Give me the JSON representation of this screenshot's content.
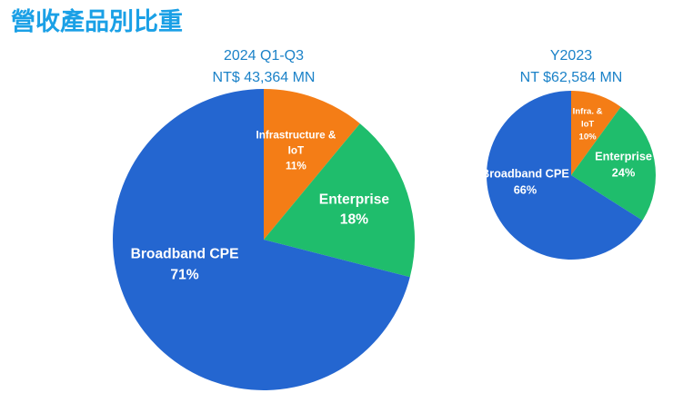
{
  "title": "營收產品別比重",
  "chart_data": [
    {
      "type": "pie",
      "title": "2024 Q1-Q3",
      "subtitle": "NT$ 43,364 MN",
      "categories": [
        "Infrastructure & IoT",
        "Enterprise",
        "Broadband CPE"
      ],
      "values": [
        11,
        18,
        71
      ],
      "value_labels": [
        "11%",
        "18%",
        "71%"
      ],
      "colors": [
        "#f47d16",
        "#1fbd6c",
        "#2466d0"
      ]
    },
    {
      "type": "pie",
      "title": "Y2023",
      "subtitle": "NT $62,584 MN",
      "categories": [
        "Infra. & IoT",
        "Enterprise",
        "Broadband CPE"
      ],
      "values": [
        10,
        24,
        66
      ],
      "value_labels": [
        "10%",
        "24%",
        "66%"
      ],
      "colors": [
        "#f47d16",
        "#1fbd6c",
        "#2466d0"
      ]
    }
  ]
}
